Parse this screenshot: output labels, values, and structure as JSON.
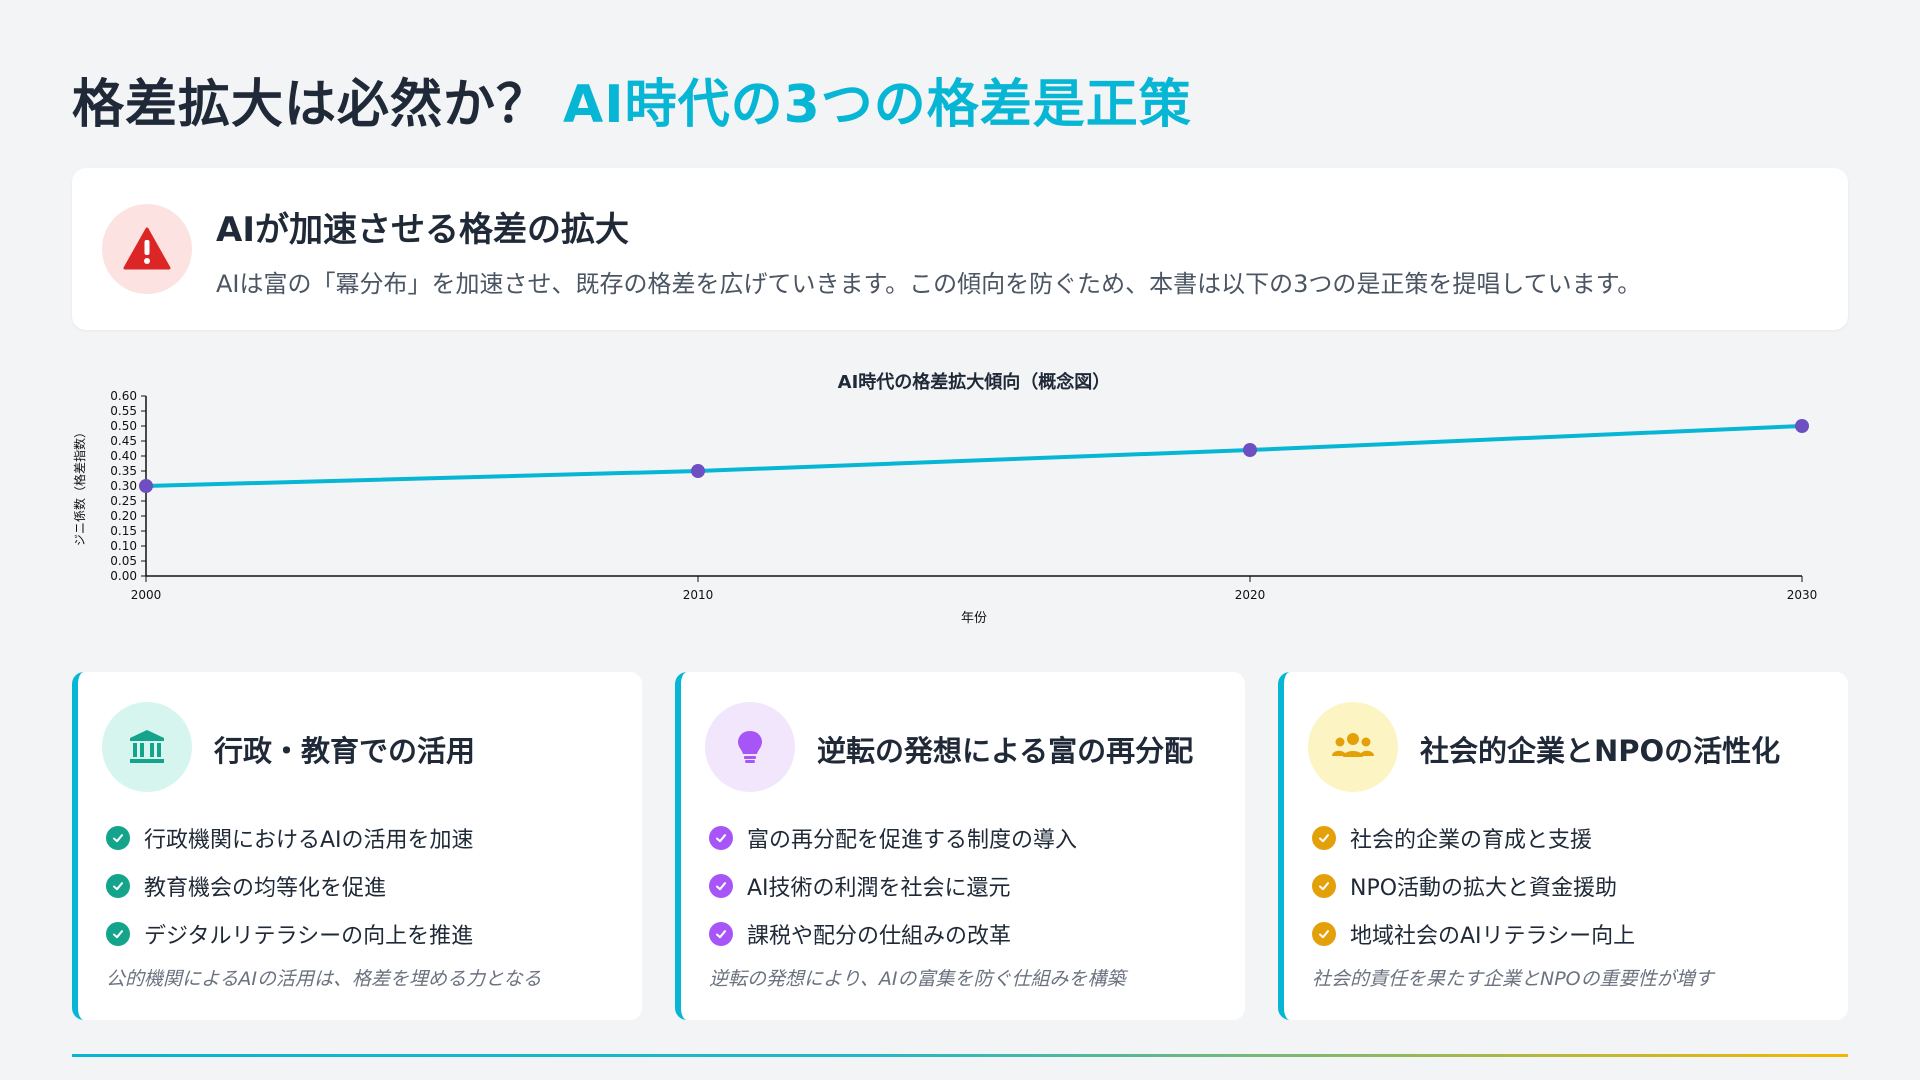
{
  "title": {
    "part1": "格差拡大は必然か？",
    "part2": "AI時代の3つの格差是正策"
  },
  "alert": {
    "title": "AIが加速させる格差の拡大",
    "text": "AIは富の「冪分布」を加速させ、既存の格差を広げていきます。この傾向を防ぐため、本書は以下の3つの是正策を提唱しています。",
    "icon": "warning-triangle-icon",
    "color": "#dc2626"
  },
  "chart_data": {
    "type": "line",
    "title": "AI時代の格差拡大傾向（概念図）",
    "xlabel": "年份",
    "ylabel": "ジニ係数（格差指数）",
    "x": [
      2000,
      2010,
      2020,
      2030
    ],
    "values": [
      0.3,
      0.35,
      0.42,
      0.5
    ],
    "xlim": [
      2000,
      2030
    ],
    "ylim": [
      0,
      0.6
    ],
    "yticks": [
      "0.00",
      "0.05",
      "0.10",
      "0.15",
      "0.20",
      "0.25",
      "0.30",
      "0.35",
      "0.40",
      "0.45",
      "0.50",
      "0.55",
      "0.60"
    ],
    "xticks": [
      "2000",
      "2010",
      "2020",
      "2030"
    ],
    "line_color": "#06b6d4",
    "marker_color": "#6d4fc2",
    "grid": false
  },
  "cards": [
    {
      "title": "行政・教育での活用",
      "icon": "building-columns-icon",
      "icon_bg": "#d6f5ee",
      "accent": "#14a38b",
      "items": [
        "行政機関におけるAIの活用を加速",
        "教育機会の均等化を促進",
        "デジタルリテラシーの向上を推進"
      ],
      "note": "公的機関によるAIの活用は、格差を埋める力となる"
    },
    {
      "title": "逆転の発想による富の再分配",
      "icon": "lightbulb-icon",
      "icon_bg": "#f1e6fb",
      "accent": "#a855f7",
      "items": [
        "富の再分配を促進する制度の導入",
        "AI技術の利潤を社会に還元",
        "課税や配分の仕組みの改革"
      ],
      "note": "逆転の発想により、AIの富集を防ぐ仕組みを構築"
    },
    {
      "title": "社会的企業とNPOの活性化",
      "icon": "people-group-icon",
      "icon_bg": "#fdf4c4",
      "accent": "#e3a008",
      "items": [
        "社会的企業の育成と支援",
        "NPO活動の拡大と資金援助",
        "地域社会のAIリテラシー向上"
      ],
      "note": "社会的責任を果たす企業とNPOの重要性が増す"
    }
  ]
}
